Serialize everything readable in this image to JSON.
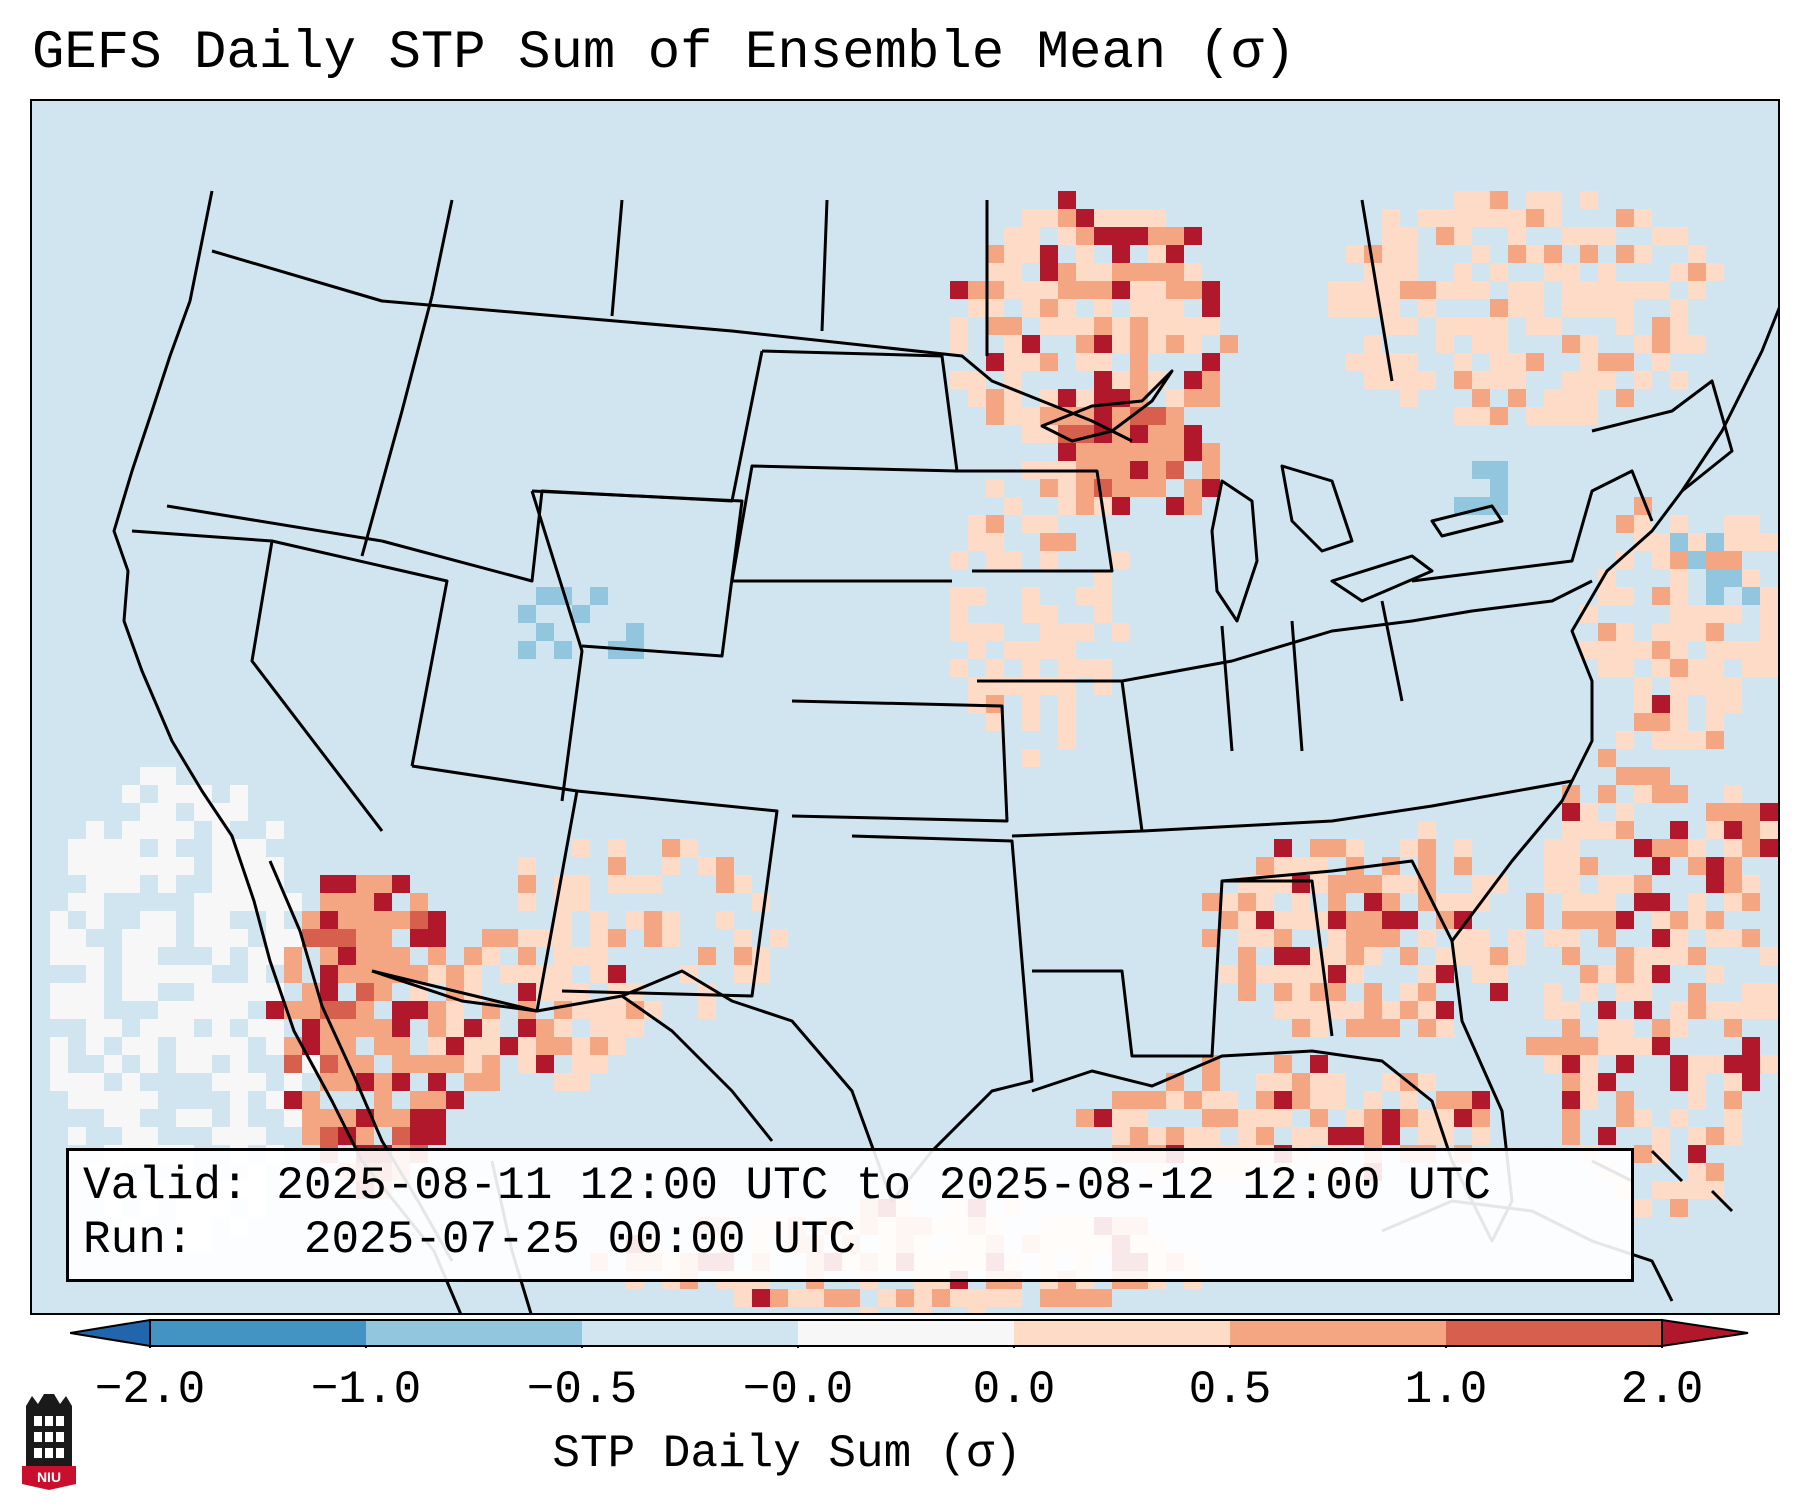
{
  "title": "GEFS Daily STP Sum of Ensemble Mean (σ)",
  "info": {
    "valid_label": "Valid:",
    "valid_value": "2025-08-11 12:00 UTC to 2025-08-12 12:00 UTC",
    "run_label": "Run:",
    "run_value": "2025-07-25 00:00 UTC"
  },
  "colorbar": {
    "label": "STP Daily Sum (σ)",
    "ticks": [
      "−2.0",
      "−1.0",
      "−0.5",
      "−0.0",
      "0.0",
      "0.5",
      "1.0",
      "2.0"
    ],
    "colors": {
      "under": "#2166ac",
      "neg_2_to_1": "#4393c3",
      "neg_1_to_05": "#92c5de",
      "neg_05_to_0": "#d1e5f0",
      "zero": "#f7f7f7",
      "pos_0_to_05": "#fddbc7",
      "pos_05_to_1": "#f4a582",
      "pos_1_to_2": "#d6604d",
      "over": "#b2182b"
    }
  },
  "map": {
    "background": "#d1e5f0",
    "region": "Contiguous United States, southern Canada, northern Mexico, Gulf of Mexico"
  },
  "logo": {
    "text": "NIU",
    "color": "#c8102e"
  }
}
